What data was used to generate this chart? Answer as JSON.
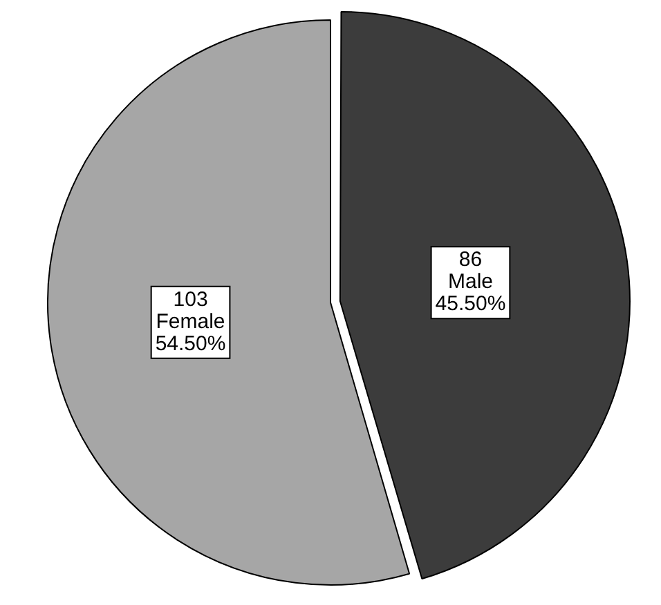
{
  "chart_data": {
    "type": "pie",
    "categories": [
      "Male",
      "Female"
    ],
    "values": [
      45.5,
      54.5
    ],
    "value_labels": [
      "45.50%",
      "54.50%"
    ],
    "annotations": [
      "86",
      "103"
    ],
    "colors": [
      "#3c3c3c",
      "#a6a6a6"
    ]
  }
}
